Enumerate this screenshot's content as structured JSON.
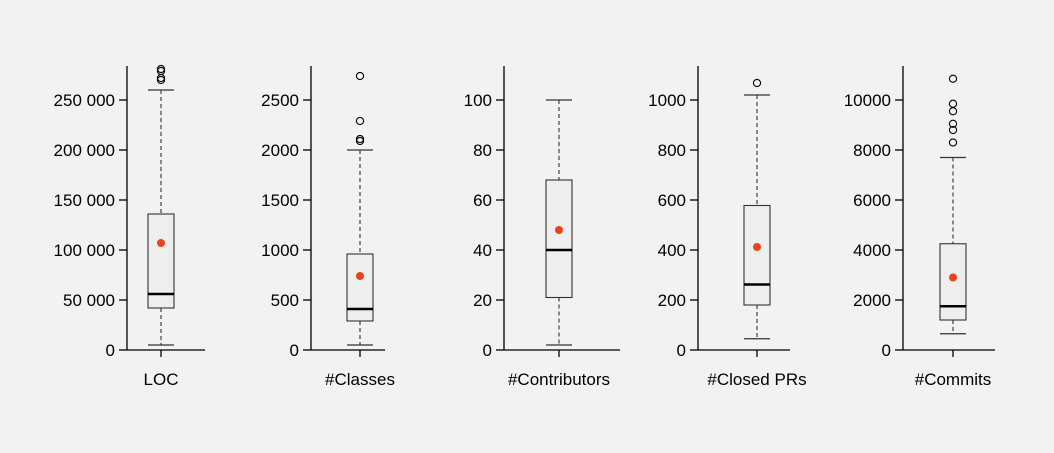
{
  "chart_data": [
    {
      "type": "box",
      "xlabel": "LOC",
      "yticks": [
        0,
        50000,
        100000,
        150000,
        200000,
        250000
      ],
      "ytick_labels": [
        "0",
        "50 000",
        "100 000",
        "150 000",
        "200 000",
        "250 000"
      ],
      "ylim": [
        0,
        285000
      ],
      "whisker_low": 5000,
      "q1": 42000,
      "median": 56000,
      "q3": 136000,
      "whisker_high": 260000,
      "mean": 107000,
      "outliers": [
        270000,
        272000,
        279000,
        281000
      ]
    },
    {
      "type": "box",
      "xlabel": "#Classes",
      "yticks": [
        0,
        500,
        1000,
        1500,
        2000,
        2500
      ],
      "ytick_labels": [
        "0",
        "500",
        "1000",
        "1500",
        "2000",
        "2500"
      ],
      "ylim": [
        0,
        2850
      ],
      "whisker_low": 50,
      "q1": 290,
      "median": 410,
      "q3": 960,
      "whisker_high": 2000,
      "mean": 740,
      "outliers": [
        2090,
        2110,
        2290,
        2740
      ]
    },
    {
      "type": "box",
      "xlabel": "#Contributors",
      "yticks": [
        0,
        20,
        40,
        60,
        80,
        100
      ],
      "ytick_labels": [
        "0",
        "20",
        "40",
        "60",
        "80",
        "100"
      ],
      "ylim": [
        0,
        110
      ],
      "whisker_low": 2,
      "q1": 21,
      "median": 40,
      "q3": 68,
      "whisker_high": 100,
      "mean": 48,
      "outliers": []
    },
    {
      "type": "box",
      "xlabel": "#Closed PRs",
      "yticks": [
        0,
        200,
        400,
        600,
        800,
        1000
      ],
      "ytick_labels": [
        "0",
        "200",
        "400",
        "600",
        "800",
        "1000"
      ],
      "ylim": [
        0,
        1100
      ],
      "whisker_low": 45,
      "q1": 180,
      "median": 262,
      "q3": 578,
      "whisker_high": 1020,
      "mean": 412,
      "outliers": [
        1068
      ]
    },
    {
      "type": "box",
      "xlabel": "#Commits",
      "yticks": [
        0,
        2000,
        4000,
        6000,
        8000,
        10000
      ],
      "ytick_labels": [
        "0",
        "2000",
        "4000",
        "6000",
        "8000",
        "10000"
      ],
      "ylim": [
        0,
        11000
      ],
      "whisker_low": 650,
      "q1": 1200,
      "median": 1750,
      "q3": 4250,
      "whisker_high": 7700,
      "mean": 2900,
      "outliers": [
        8300,
        8800,
        9050,
        9550,
        9850,
        10850
      ]
    }
  ],
  "colors": {
    "box_fill": "#eeeeee",
    "box_stroke": "#333333",
    "median": "#000000",
    "mean_dot": "#e8441b",
    "axis": "#000000"
  }
}
